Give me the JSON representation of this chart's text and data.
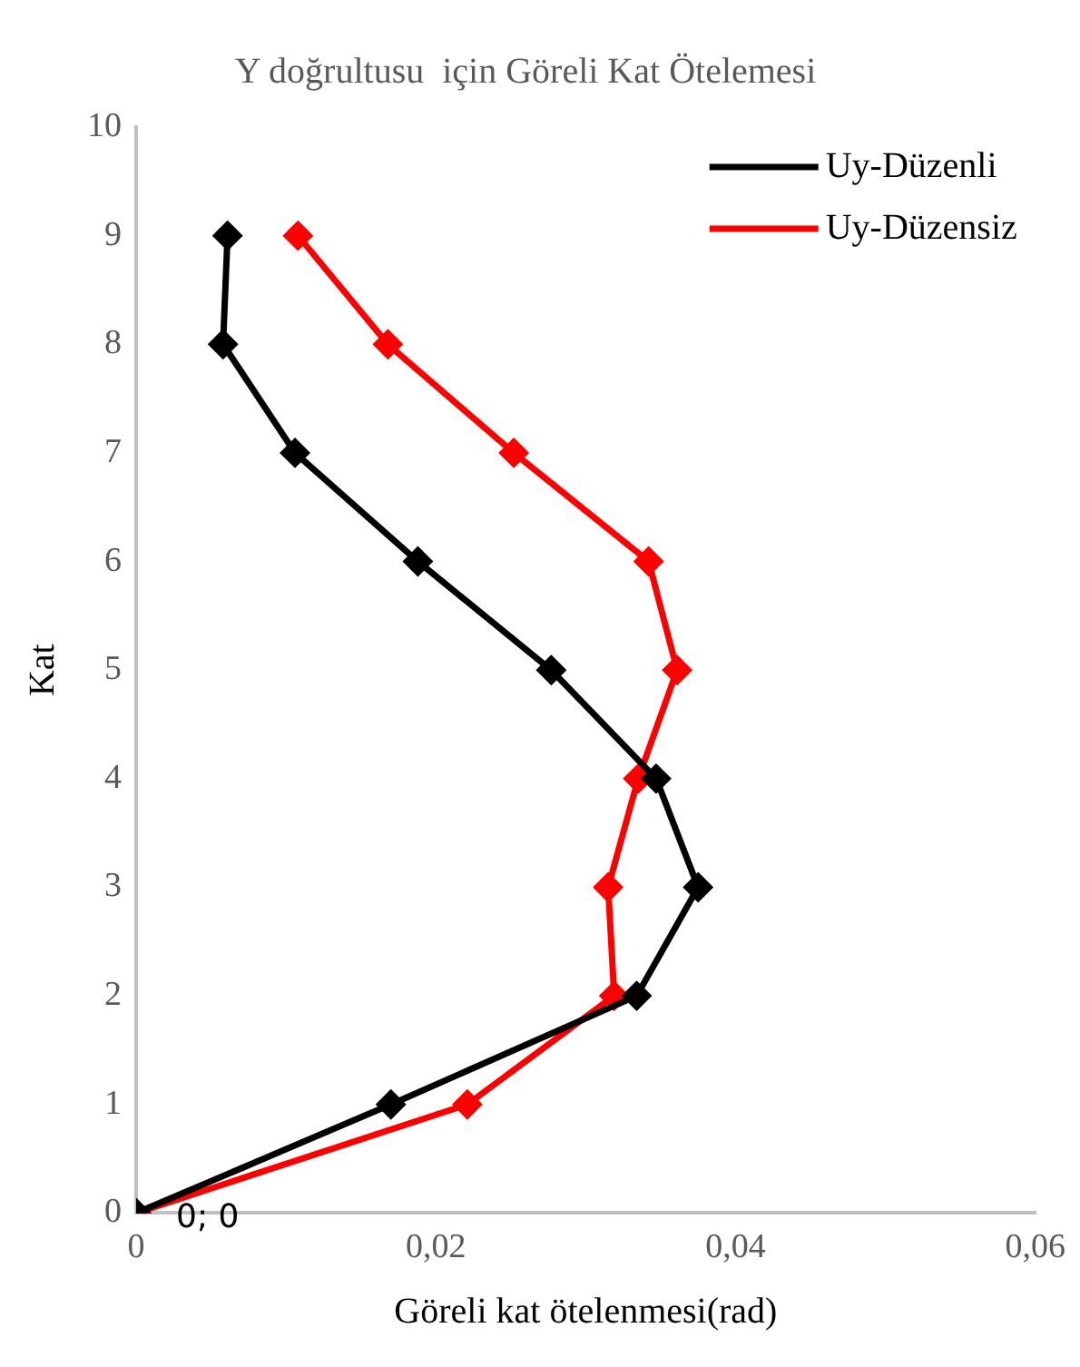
{
  "chart_data": {
    "type": "line",
    "title": "Y doğrultusu  için Göreli Kat Ötelemesi",
    "xlabel": "Göreli kat ötelenmesi(rad)",
    "ylabel": "Kat",
    "series": [
      {
        "name": "Uy-Düzenli",
        "color": "#000000",
        "x": [
          0,
          0.017,
          0.0334,
          0.0375,
          0.0347,
          0.0277,
          0.0188,
          0.0106,
          0.0058,
          0.0061
        ],
        "values": [
          0,
          1,
          2,
          3,
          4,
          5,
          6,
          7,
          8,
          9
        ]
      },
      {
        "name": "Uy-Düzensiz",
        "color": "#ff0000",
        "x": [
          0,
          0.0221,
          0.0319,
          0.0315,
          0.0335,
          0.0361,
          0.0342,
          0.0252,
          0.0168,
          0.0108
        ],
        "values": [
          0,
          1,
          2,
          3,
          4,
          5,
          6,
          7,
          8,
          9
        ]
      }
    ],
    "annotations": [
      {
        "text": "0; 0",
        "x": 0,
        "y": 0
      }
    ],
    "xlim": [
      0,
      0.06
    ],
    "xticks": [
      0,
      {
        "value": 0.02,
        "label": "0,02"
      },
      {
        "value": 0.04,
        "label": "0,04"
      },
      {
        "value": 0.06,
        "label": "0,06"
      }
    ],
    "ylim": [
      0,
      10
    ],
    "yticks": [
      0,
      1,
      2,
      3,
      4,
      5,
      6,
      7,
      8,
      9,
      10
    ],
    "grid": false,
    "legend": "top right",
    "marker": "diamond",
    "line_style": "solid"
  }
}
